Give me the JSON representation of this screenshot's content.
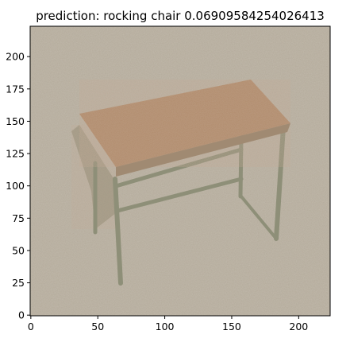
{
  "chart_data": {
    "type": "image",
    "title": "prediction: rocking chair 0.06909584254026413",
    "xlabel": "",
    "ylabel": "",
    "image_size": [
      224,
      224
    ],
    "xlim": [
      -0.5,
      223.5
    ],
    "ylim": [
      223.5,
      -0.5
    ],
    "x_ticks": [
      0,
      50,
      100,
      150,
      200
    ],
    "y_ticks": [
      0,
      25,
      50,
      75,
      100,
      125,
      150,
      175,
      200
    ],
    "grid": false,
    "colors": {
      "background_noise": "#b3aa9a",
      "table_top": "#b08a6a",
      "table_legs": "#8e8f78",
      "table_side_panel": "#9c9682"
    }
  }
}
